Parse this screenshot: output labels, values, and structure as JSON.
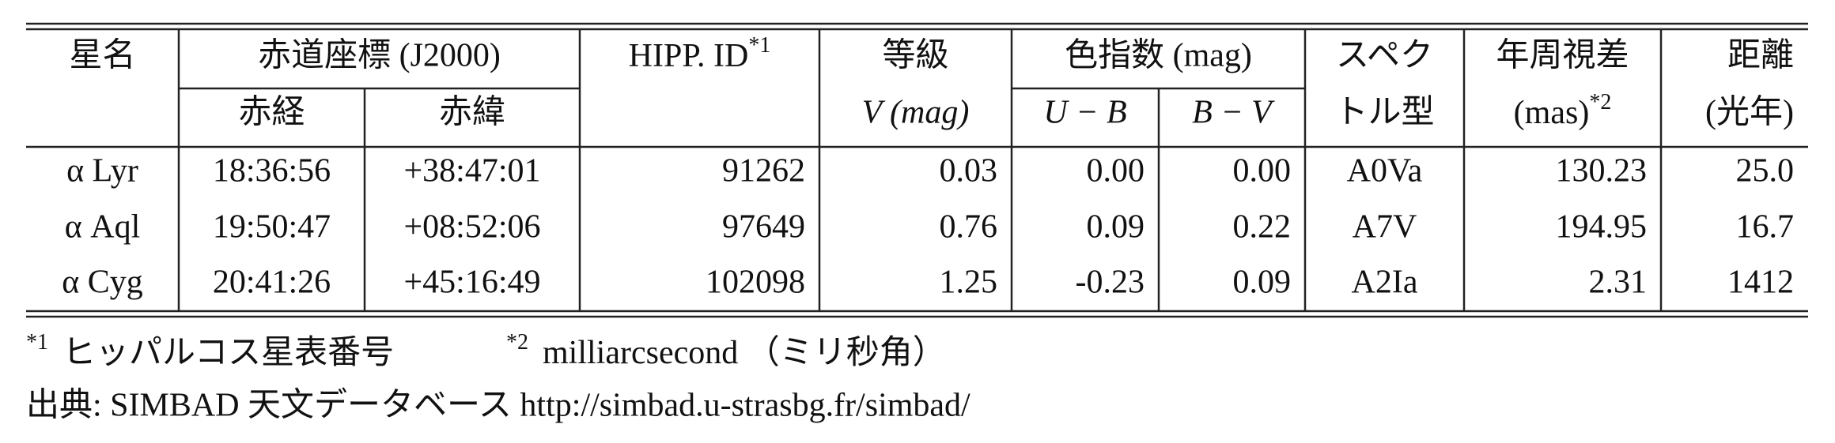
{
  "table": {
    "header": {
      "name": "星名",
      "coords": "赤道座標 (J2000)",
      "ra": "赤経",
      "dec": "赤緯",
      "hip": {
        "text": "HIPP. ID",
        "note": "*1"
      },
      "mag": "等級",
      "mag_unit": "V (mag)",
      "color_index": "色指数 (mag)",
      "ub": "U − B",
      "bv": "B − V",
      "spectral": [
        "スペク",
        "トル型"
      ],
      "parallax": "年周視差",
      "parallax_unit": {
        "text": "(mas)",
        "note": "*2"
      },
      "distance": "距離",
      "distance_unit": "(光年)"
    },
    "rows": [
      [
        "α Lyr",
        "18:36:56",
        "+38:47:01",
        "91262",
        "0.03",
        "0.00",
        "0.00",
        "A0Va",
        "130.23",
        "25.0"
      ],
      [
        "α Aql",
        "19:50:47",
        "+08:52:06",
        "97649",
        "0.76",
        "0.09",
        "0.22",
        "A7V",
        "194.95",
        "16.7"
      ],
      [
        "α Cyg",
        "20:41:26",
        "+45:16:49",
        "102098",
        "1.25",
        "-0.23",
        "0.09",
        "A2Ia",
        "2.31",
        "1412"
      ]
    ]
  },
  "footnotes": [
    {
      "mark": "*1",
      "text": "ヒッパルコス星表番号"
    },
    {
      "mark": "*2",
      "text": "milliarcsecond （ミリ秒角）"
    }
  ],
  "source": "出典: SIMBAD 天文データベース http://simbad.u-strasbg.fr/simbad/"
}
